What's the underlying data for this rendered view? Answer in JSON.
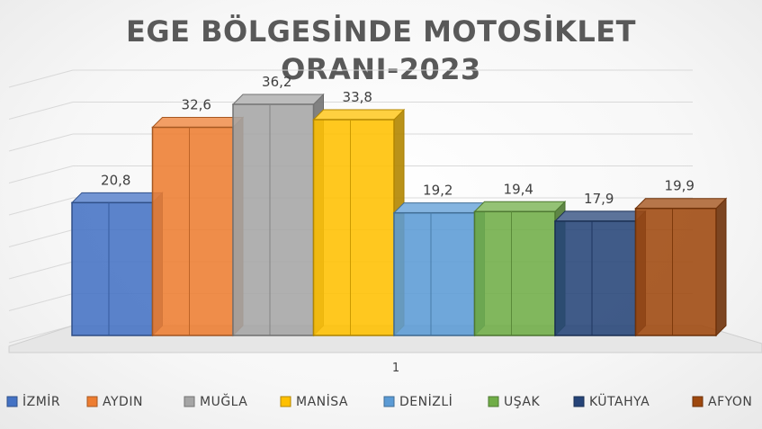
{
  "chart_data": {
    "type": "bar",
    "title_line1": "EGE BÖLGESİNDE MOTOSİKLET",
    "title_line2": "ORANI-2023",
    "categories": [
      "1"
    ],
    "series": [
      {
        "name": "İZMİR",
        "value": 20.8,
        "label": "20,8",
        "color": "#4472C4"
      },
      {
        "name": "AYDIN",
        "value": 32.6,
        "label": "32,6",
        "color": "#ED7D31"
      },
      {
        "name": "MUĞLA",
        "value": 36.2,
        "label": "36,2",
        "color": "#A5A5A5"
      },
      {
        "name": "MANİSA",
        "value": 33.8,
        "label": "33,8",
        "color": "#FFC000"
      },
      {
        "name": "DENİZLİ",
        "value": 19.2,
        "label": "19,2",
        "color": "#5B9BD5"
      },
      {
        "name": "UŞAK",
        "value": 19.4,
        "label": "19,4",
        "color": "#70AD47"
      },
      {
        "name": "KÜTAHYA",
        "value": 17.9,
        "label": "17,9",
        "color": "#264478"
      },
      {
        "name": "AFYON",
        "value": 19.9,
        "label": "19,9",
        "color": "#9E480E"
      }
    ],
    "ylim": [
      0,
      40
    ],
    "grid": true,
    "legend_position": "bottom"
  }
}
